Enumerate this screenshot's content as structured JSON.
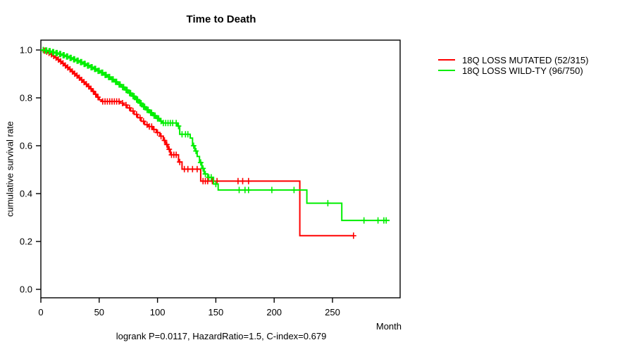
{
  "title": "Time to Death",
  "footer": "logrank P=0.0117, HazardRatio=1.5, C-index=0.679",
  "stats": {
    "logrank_p": 0.0117,
    "hazard_ratio": 1.5,
    "c_index": 0.679
  },
  "chart_data": {
    "type": "line",
    "subtype": "kaplan-meier-step",
    "title": "Time to Death",
    "xlabel": "Month",
    "ylabel": "cumulative survival rate",
    "xlim": [
      0,
      308
    ],
    "ylim": [
      0.0,
      1.0
    ],
    "x_ticks": [
      0,
      50,
      100,
      150,
      200,
      250
    ],
    "y_ticks": [
      0.0,
      0.2,
      0.4,
      0.6,
      0.8,
      1.0
    ],
    "grid": false,
    "legend_position": "right-outside",
    "series": [
      {
        "id": "mutated",
        "name": "18Q LOSS MUTATED (52/315)",
        "color": "#ff0000",
        "end": 268,
        "steps": [
          [
            0,
            1.0
          ],
          [
            2,
            0.997
          ],
          [
            4,
            0.993
          ],
          [
            6,
            0.988
          ],
          [
            8,
            0.982
          ],
          [
            10,
            0.975
          ],
          [
            12,
            0.968
          ],
          [
            14,
            0.96
          ],
          [
            16,
            0.952
          ],
          [
            18,
            0.944
          ],
          [
            20,
            0.935
          ],
          [
            22,
            0.927
          ],
          [
            24,
            0.919
          ],
          [
            26,
            0.91
          ],
          [
            28,
            0.901
          ],
          [
            30,
            0.893
          ],
          [
            32,
            0.884
          ],
          [
            34,
            0.875
          ],
          [
            36,
            0.866
          ],
          [
            38,
            0.857
          ],
          [
            40,
            0.848
          ],
          [
            42,
            0.838
          ],
          [
            44,
            0.827
          ],
          [
            46,
            0.815
          ],
          [
            48,
            0.803
          ],
          [
            50,
            0.792
          ],
          [
            52,
            0.785
          ],
          [
            68,
            0.778
          ],
          [
            71,
            0.77
          ],
          [
            74,
            0.758
          ],
          [
            77,
            0.745
          ],
          [
            80,
            0.731
          ],
          [
            83,
            0.717
          ],
          [
            86,
            0.702
          ],
          [
            89,
            0.688
          ],
          [
            92,
            0.68
          ],
          [
            96,
            0.668
          ],
          [
            99,
            0.655
          ],
          [
            102,
            0.64
          ],
          [
            105,
            0.622
          ],
          [
            107,
            0.605
          ],
          [
            109,
            0.585
          ],
          [
            111,
            0.562
          ],
          [
            118,
            0.532
          ],
          [
            121,
            0.502
          ],
          [
            137,
            0.452
          ],
          [
            222,
            0.224
          ]
        ],
        "censors": [
          3,
          5,
          7,
          9,
          11,
          13,
          15,
          17,
          19,
          21,
          23,
          25,
          27,
          29,
          31,
          33,
          35,
          37,
          39,
          41,
          43,
          45,
          47,
          49,
          53,
          55,
          57,
          59,
          61,
          63,
          65,
          67,
          70,
          73,
          76,
          79,
          82,
          85,
          88,
          91,
          93,
          95,
          97,
          100,
          103,
          106,
          108,
          110,
          112,
          114,
          116,
          119,
          123,
          126,
          130,
          134,
          139,
          141,
          143,
          147,
          151,
          169,
          173,
          178,
          268
        ]
      },
      {
        "id": "wildtype",
        "name": "18Q LOSS WILD-TY (96/750)",
        "color": "#00ee00",
        "end": 299,
        "steps": [
          [
            0,
            1.0
          ],
          [
            3,
            0.998
          ],
          [
            6,
            0.995
          ],
          [
            9,
            0.991
          ],
          [
            12,
            0.987
          ],
          [
            15,
            0.983
          ],
          [
            18,
            0.978
          ],
          [
            21,
            0.973
          ],
          [
            24,
            0.967
          ],
          [
            27,
            0.961
          ],
          [
            30,
            0.955
          ],
          [
            33,
            0.949
          ],
          [
            36,
            0.942
          ],
          [
            39,
            0.935
          ],
          [
            42,
            0.928
          ],
          [
            45,
            0.921
          ],
          [
            48,
            0.913
          ],
          [
            51,
            0.905
          ],
          [
            54,
            0.896
          ],
          [
            57,
            0.887
          ],
          [
            60,
            0.877
          ],
          [
            63,
            0.867
          ],
          [
            66,
            0.856
          ],
          [
            69,
            0.845
          ],
          [
            72,
            0.833
          ],
          [
            75,
            0.82
          ],
          [
            78,
            0.807
          ],
          [
            81,
            0.793
          ],
          [
            84,
            0.778
          ],
          [
            87,
            0.763
          ],
          [
            90,
            0.75
          ],
          [
            93,
            0.738
          ],
          [
            96,
            0.726
          ],
          [
            99,
            0.714
          ],
          [
            102,
            0.703
          ],
          [
            104,
            0.695
          ],
          [
            117,
            0.682
          ],
          [
            119,
            0.648
          ],
          [
            128,
            0.632
          ],
          [
            130,
            0.6
          ],
          [
            132,
            0.578
          ],
          [
            134,
            0.555
          ],
          [
            136,
            0.53
          ],
          [
            138,
            0.505
          ],
          [
            140,
            0.482
          ],
          [
            143,
            0.468
          ],
          [
            148,
            0.44
          ],
          [
            152,
            0.415
          ],
          [
            228,
            0.36
          ],
          [
            258,
            0.288
          ]
        ],
        "censors": [
          2,
          4,
          5,
          7,
          8,
          10,
          11,
          13,
          14,
          16,
          17,
          19,
          20,
          22,
          23,
          25,
          26,
          28,
          29,
          31,
          32,
          34,
          35,
          37,
          38,
          40,
          41,
          43,
          44,
          46,
          47,
          49,
          50,
          52,
          53,
          55,
          56,
          58,
          59,
          61,
          62,
          64,
          65,
          67,
          68,
          70,
          71,
          73,
          74,
          76,
          77,
          79,
          80,
          82,
          83,
          85,
          86,
          88,
          89,
          91,
          92,
          94,
          95,
          97,
          98,
          100,
          101,
          103,
          105,
          107,
          109,
          111,
          113,
          116,
          118,
          121,
          124,
          126,
          131,
          133,
          137,
          139,
          141,
          144,
          146,
          150,
          170,
          175,
          178,
          198,
          217,
          246,
          277,
          289,
          294,
          296
        ]
      }
    ]
  }
}
